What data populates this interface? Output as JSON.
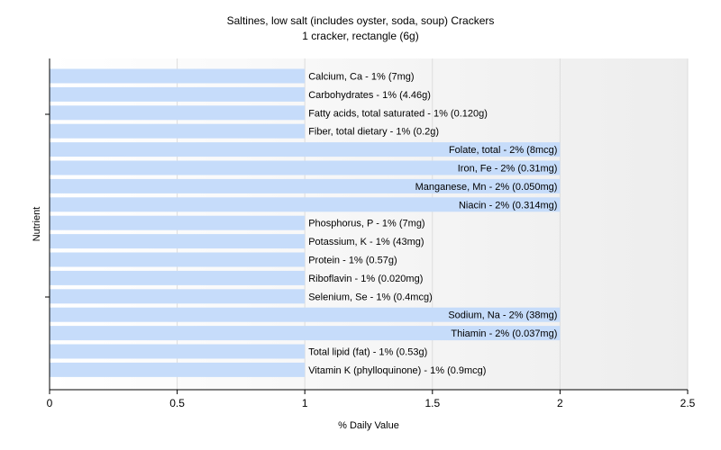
{
  "chart_data": {
    "type": "bar",
    "orientation": "horizontal",
    "title": "Saltines, low salt (includes oyster, soda, soup) Crackers",
    "subtitle": "1 cracker, rectangle (6g)",
    "xlabel": "% Daily Value",
    "ylabel": "Nutrient",
    "xlim": [
      0,
      2.5
    ],
    "xticks": [
      "0",
      "0.5",
      "1",
      "1.5",
      "2",
      "2.5"
    ],
    "grid": true,
    "bar_color": "#c6dcfa",
    "categories": [
      "Calcium, Ca",
      "Carbohydrates",
      "Fatty acids, total saturated",
      "Fiber, total dietary",
      "Folate, total",
      "Iron, Fe",
      "Manganese, Mn",
      "Niacin",
      "Phosphorus, P",
      "Potassium, K",
      "Protein",
      "Riboflavin",
      "Selenium, Se",
      "Sodium, Na",
      "Thiamin",
      "Total lipid (fat)",
      "Vitamin K (phylloquinone)"
    ],
    "values": [
      1,
      1,
      1,
      1,
      2,
      2,
      2,
      2,
      1,
      1,
      1,
      1,
      1,
      2,
      2,
      1,
      1
    ],
    "labels": [
      "Calcium, Ca - 1% (7mg)",
      "Carbohydrates - 1% (4.46g)",
      "Fatty acids, total saturated - 1% (0.120g)",
      "Fiber, total dietary - 1% (0.2g)",
      "Folate, total - 2% (8mcg)",
      "Iron, Fe - 2% (0.31mg)",
      "Manganese, Mn - 2% (0.050mg)",
      "Niacin - 2% (0.314mg)",
      "Phosphorus, P - 1% (7mg)",
      "Potassium, K - 1% (43mg)",
      "Protein - 1% (0.57g)",
      "Riboflavin - 1% (0.020mg)",
      "Selenium, Se - 1% (0.4mcg)",
      "Sodium, Na - 2% (38mg)",
      "Thiamin - 2% (0.037mg)",
      "Total lipid (fat) - 1% (0.53g)",
      "Vitamin K (phylloquinone) - 1% (0.9mcg)"
    ]
  }
}
